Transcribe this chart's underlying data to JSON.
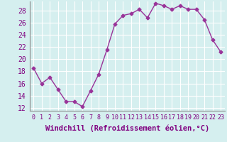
{
  "x": [
    0,
    1,
    2,
    3,
    4,
    5,
    6,
    7,
    8,
    9,
    10,
    11,
    12,
    13,
    14,
    15,
    16,
    17,
    18,
    19,
    20,
    21,
    22,
    23
  ],
  "y": [
    18.5,
    16.0,
    17.0,
    15.0,
    13.0,
    13.0,
    12.2,
    14.8,
    17.5,
    21.5,
    25.8,
    27.2,
    27.5,
    28.2,
    26.8,
    29.2,
    28.8,
    28.2,
    28.8,
    28.2,
    28.2,
    26.5,
    23.2,
    21.2
  ],
  "line_color": "#993399",
  "marker": "D",
  "marker_size": 2.5,
  "xlabel": "Windchill (Refroidissement éolien,°C)",
  "xlim": [
    -0.5,
    23.5
  ],
  "ylim": [
    11.5,
    29.5
  ],
  "yticks": [
    12,
    14,
    16,
    18,
    20,
    22,
    24,
    26,
    28
  ],
  "xticks": [
    0,
    1,
    2,
    3,
    4,
    5,
    6,
    7,
    8,
    9,
    10,
    11,
    12,
    13,
    14,
    15,
    16,
    17,
    18,
    19,
    20,
    21,
    22,
    23
  ],
  "background_color": "#d5efef",
  "grid_color": "#ffffff",
  "label_color": "#800080",
  "xlabel_fontsize": 7.5,
  "ytick_fontsize": 7,
  "xtick_fontsize": 6
}
